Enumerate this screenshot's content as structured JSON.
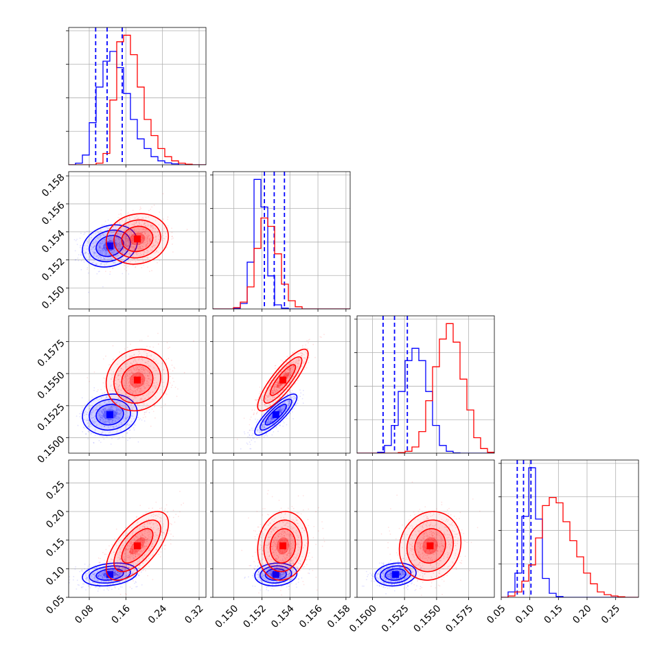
{
  "chart_data": {
    "type": "corner",
    "title": "",
    "parameters": [
      "",
      "",
      "",
      ""
    ],
    "ranges": [
      [
        0.035,
        0.335
      ],
      [
        0.1485,
        0.1583
      ],
      [
        0.1488,
        0.1595
      ],
      [
        0.05,
        0.29
      ]
    ],
    "ticks": [
      [
        0.08,
        0.16,
        0.24,
        0.32
      ],
      [
        0.15,
        0.152,
        0.154,
        0.156,
        0.158
      ],
      [
        0.15,
        0.1525,
        0.155,
        0.1575
      ],
      [
        0.05,
        0.1,
        0.15,
        0.2,
        0.25
      ]
    ],
    "tick_labels": [
      [
        "0.08",
        "0.16",
        "0.24",
        "0.32"
      ],
      [
        "0.150",
        "0.152",
        "0.154",
        "0.156",
        "0.158"
      ],
      [
        "0.1500",
        "0.1525",
        "0.1550",
        "0.1575"
      ],
      [
        "0.05",
        "0.10",
        "0.15",
        "0.20",
        "0.25"
      ]
    ],
    "grid": true,
    "series": [
      {
        "color": "#0000ff",
        "means": [
          0.125,
          0.153,
          0.1518,
          0.09
        ],
        "stds": [
          0.03,
          0.00075,
          0.0008,
          0.01
        ],
        "correlations": [
          [
            0,
            1,
            0.2
          ],
          [
            0,
            2,
            0.1
          ],
          [
            0,
            3,
            0.25
          ],
          [
            1,
            2,
            0.85
          ],
          [
            1,
            3,
            0.1
          ],
          [
            2,
            3,
            0.15
          ]
        ],
        "quantiles": [
          [
            0.094,
            0.119,
            0.152
          ],
          [
            0.15218,
            0.15288,
            0.15361
          ],
          [
            0.15083,
            0.15172,
            0.15272
          ],
          [
            0.078,
            0.089,
            0.102
          ]
        ],
        "histograms": [
          [
            0,
            0.5,
            3,
            13,
            24,
            32,
            35,
            30,
            22,
            14,
            8,
            5,
            2.5,
            1.2,
            0.6,
            0.3,
            0,
            0,
            0,
            0
          ],
          [
            0,
            0,
            0,
            0.3,
            2,
            17,
            47,
            37,
            12,
            1.5,
            0.3,
            0,
            0,
            0,
            0,
            0,
            0,
            0,
            0,
            0
          ],
          [
            0,
            0,
            0,
            0.3,
            2.5,
            9,
            20,
            30,
            34,
            30,
            20,
            9,
            2.5,
            0.6,
            0.1,
            0,
            0,
            0,
            0,
            0
          ],
          [
            0,
            2,
            9,
            30,
            48,
            29,
            7,
            1.5,
            0.3,
            0,
            0,
            0,
            0,
            0,
            0,
            0,
            0,
            0,
            0,
            0
          ]
        ]
      },
      {
        "color": "#ff0000",
        "means": [
          0.185,
          0.1535,
          0.1545,
          0.14
        ],
        "stds": [
          0.034,
          0.0009,
          0.0012,
          0.03
        ],
        "correlations": [
          [
            0,
            1,
            0.1
          ],
          [
            0,
            2,
            0.1
          ],
          [
            0,
            3,
            0.65
          ],
          [
            1,
            2,
            0.85
          ],
          [
            1,
            3,
            0.1
          ],
          [
            2,
            3,
            0.1
          ]
        ],
        "quantiles": [],
        "histograms": [
          [
            0,
            0,
            0,
            0,
            0.5,
            3.5,
            20,
            38,
            40,
            34,
            24,
            14,
            9,
            5,
            2.5,
            1.2,
            0.5,
            0.2,
            0,
            0
          ],
          [
            0,
            0,
            0,
            0.5,
            2.5,
            8,
            22,
            33,
            30,
            20,
            9,
            3,
            0.8,
            0,
            0,
            0,
            0,
            0,
            0,
            0
          ],
          [
            0,
            0,
            0,
            0,
            0,
            0,
            0.2,
            0.6,
            2,
            7,
            17,
            28,
            37,
            42,
            36,
            24,
            14,
            5,
            1.5,
            0.3
          ],
          [
            0,
            0.5,
            2,
            6,
            12,
            22,
            34,
            37,
            35,
            28,
            21,
            15,
            9,
            5,
            2,
            1,
            0.5,
            0.2,
            0,
            0
          ]
        ]
      }
    ]
  }
}
